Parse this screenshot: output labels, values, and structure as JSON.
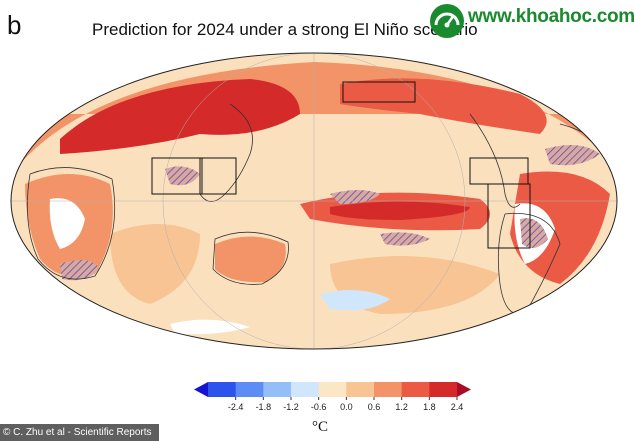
{
  "figure": {
    "panel_letter": "b",
    "title": "Prediction for 2024 under a strong El Niño scenario"
  },
  "watermark": {
    "text": "www.khoahoc.com.vn",
    "logo_icon": "meter-logo-icon"
  },
  "colorbar": {
    "ticks": [
      "-2.4",
      "-1.8",
      "-1.2",
      "-0.6",
      "0.0",
      "0.6",
      "1.2",
      "1.8",
      "2.4"
    ],
    "unit": "°C",
    "colors": [
      "#1414d2",
      "#2e52ec",
      "#5c8cf4",
      "#94bef8",
      "#cfe6fb",
      "#fbe7c6",
      "#f8c493",
      "#f39468",
      "#ea5a45",
      "#d42a2a",
      "#a80c26"
    ],
    "extend": "both"
  },
  "credit": "© C. Zhu et al - Scientific Reports",
  "map_colors": {
    "weak": "#fbe0be",
    "mild": "#f8c493",
    "moderate": "#f39468",
    "strong": "#ea5a45",
    "very_strong": "#d42a2a",
    "cool": "#cfe6fb",
    "hatch": "#4a3fb0"
  }
}
